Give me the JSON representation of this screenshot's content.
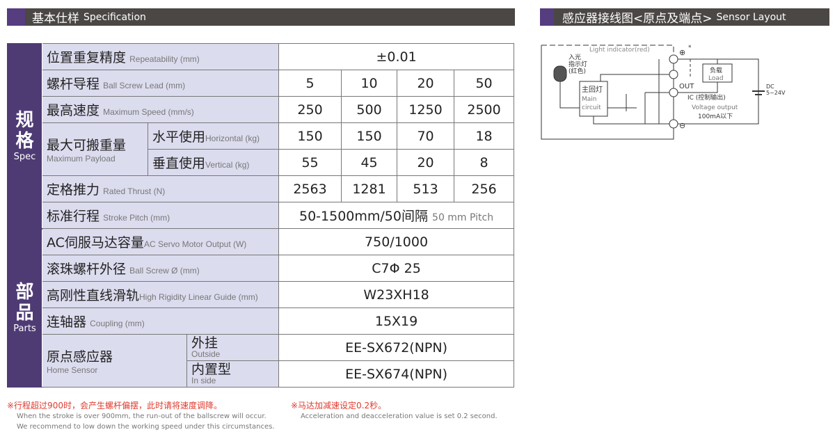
{
  "spec_header": {
    "zh": "基本仕样",
    "en": "Specification"
  },
  "sensor_header": {
    "zh": "感应器接线图<原点及端点>",
    "en": "Sensor Layout"
  },
  "sections": {
    "spec": {
      "zh1": "规",
      "zh2": "格",
      "en": "Spec"
    },
    "parts": {
      "zh1": "部",
      "zh2": "品",
      "en": "Parts"
    }
  },
  "rows": {
    "repeat": {
      "zh": "位置重复精度",
      "en": "Repeatability (mm)",
      "value": "±0.01"
    },
    "lead": {
      "zh": "螺杆导程",
      "en": "Ball Screw Lead (mm)",
      "values": [
        "5",
        "10",
        "20",
        "50"
      ]
    },
    "speed": {
      "zh": "最高速度",
      "en": "Maximum Speed (mm/s)",
      "values": [
        "250",
        "500",
        "1250",
        "2500"
      ]
    },
    "payload": {
      "zh": "最大可搬重量",
      "en": "Maximum Payload",
      "horizontal": {
        "zh": "水平使用",
        "en": "Horizontal (kg)",
        "values": [
          "150",
          "150",
          "70",
          "18"
        ]
      },
      "vertical": {
        "zh": "垂直使用",
        "en": "Vertical (kg)",
        "values": [
          "55",
          "45",
          "20",
          "8"
        ]
      }
    },
    "thrust": {
      "zh": "定格推力",
      "en": "Rated Thrust (N)",
      "values": [
        "2563",
        "1281",
        "513",
        "256"
      ]
    },
    "stroke": {
      "zh": "标准行程",
      "en": "Stroke Pitch (mm)",
      "value": "50-1500mm/50间隔",
      "value_en": "50 mm Pitch"
    },
    "motor": {
      "zh": "AC伺服马达容量",
      "en": "AC Servo Motor Output (W)",
      "value": "750/1000"
    },
    "screw": {
      "zh": "滚珠螺杆外径",
      "en": "Ball Screw Ø (mm)",
      "value": "C7Φ 25"
    },
    "guide": {
      "zh": "高刚性直线滑轨",
      "en": "High Rigidity Linear Guide (mm)",
      "value": "W23XH18"
    },
    "coupling": {
      "zh": "连轴器",
      "en": "Coupling (mm)",
      "value": "15X19"
    },
    "home": {
      "zh": "原点感应器",
      "en": "Home Sensor",
      "outside": {
        "zh": "外挂",
        "en": "Outside",
        "value": "EE-SX672(NPN)"
      },
      "inside": {
        "zh": "内置型",
        "en": "In side",
        "value": "EE-SX674(NPN)"
      }
    }
  },
  "notes": {
    "n1": "※行程超过900时，会产生螺杆偏摆，此时请将速度调降。",
    "n1_en1": "When the stroke is over 900mm, the run-out of the ballscrew will occur.",
    "n1_en2": "We recommend to low down the working speed under this circumstances.",
    "n2": "※马达加减速设定0.2秒。",
    "n2_en": "Acceleration and deacceleration value is set 0.2 second."
  },
  "diagram": {
    "light": "Light indicator(red)",
    "in_light": "入光",
    "indicator": "指示灯",
    "red": "(红色)",
    "main_zh": "主回灯",
    "main_en1": "Main",
    "main_en2": "circuit",
    "plus": "⊕",
    "star": "*",
    "minus": "⊖",
    "out": "OUT",
    "load_zh": "负载",
    "load_en": "Load",
    "ic": "IC (控制输出)",
    "vout": "Voltage output",
    "ma": "100mA以下",
    "dc": "DC",
    "dcv": "5~24V"
  },
  "colors": {
    "purple": "#4e3b74",
    "label_bg": "#dcdcef",
    "header": "#4b4745",
    "note_red": "#e03a2d"
  }
}
